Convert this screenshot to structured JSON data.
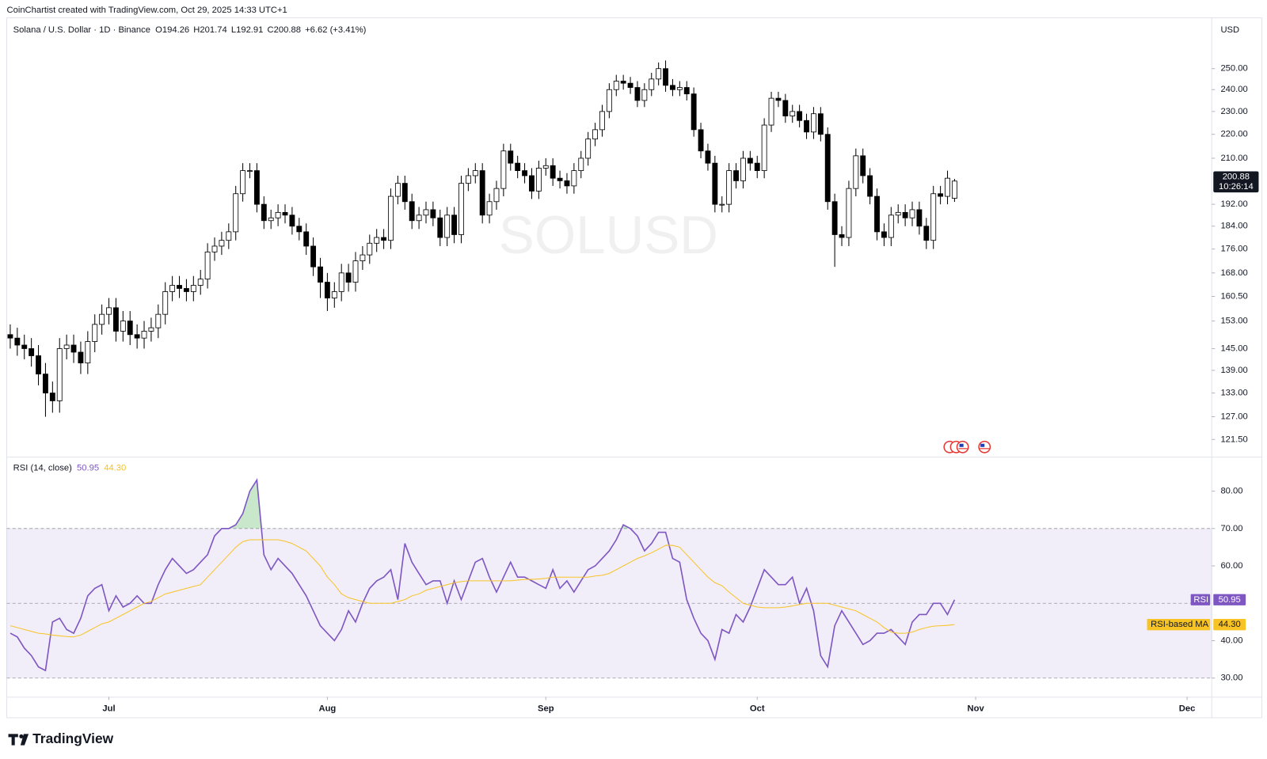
{
  "header": "CoinChartist created with TradingView.com, Oct 29, 2025 14:33 UTC+1",
  "brand": "TradingView",
  "chart_data": [
    {
      "type": "candlestick",
      "title": "Solana / U.S. Dollar · 1D · Binance",
      "ohlc_prefixes": [
        "O",
        "H",
        "L",
        "C"
      ],
      "change": "+6.62 (+3.41%)",
      "watermark": "SOLUSD",
      "currency": "USD",
      "countdown": "10:26:14",
      "up_color": "#ffffff",
      "down_color": "#000000",
      "wick_color": "#000000",
      "log_scale": true,
      "grid": false,
      "xlim": [
        -0.5,
        170.5
      ],
      "ylim": [
        117.5,
        276
      ],
      "yticks": [
        {
          "value": 121.5,
          "label": "121.50"
        },
        {
          "value": 127,
          "label": "127.00"
        },
        {
          "value": 133,
          "label": "133.00"
        },
        {
          "value": 139,
          "label": "139.00"
        },
        {
          "value": 145,
          "label": "145.00"
        },
        {
          "value": 153,
          "label": "153.00"
        },
        {
          "value": 160.5,
          "label": "160.50"
        },
        {
          "value": 168,
          "label": "168.00"
        },
        {
          "value": 176,
          "label": "176.00"
        },
        {
          "value": 184,
          "label": "184.00"
        },
        {
          "value": 192,
          "label": "192.00"
        },
        {
          "value": 210,
          "label": "210.00"
        },
        {
          "value": 220,
          "label": "220.00"
        },
        {
          "value": 230,
          "label": "230.00"
        },
        {
          "value": 240,
          "label": "240.00"
        },
        {
          "value": 250,
          "label": "250.00"
        }
      ],
      "open": [
        149,
        148,
        146,
        145,
        143,
        138,
        133,
        131,
        145,
        146,
        144,
        141,
        147,
        152,
        155,
        157,
        150,
        153,
        149,
        148,
        150,
        151,
        155,
        162,
        164,
        163,
        162,
        164,
        166,
        175,
        177,
        179,
        182,
        196,
        205,
        205,
        192,
        186,
        187,
        189,
        188,
        184,
        182,
        177,
        170,
        165,
        160,
        162,
        168,
        165,
        172,
        174,
        178,
        180,
        179,
        195,
        200,
        193,
        186,
        188,
        190,
        187,
        180,
        188,
        181,
        200,
        203,
        205,
        188,
        193,
        198,
        213,
        208,
        205,
        203,
        197,
        206,
        207,
        202,
        201,
        199,
        205,
        210,
        218,
        222,
        230,
        240,
        244,
        243,
        241,
        235,
        240,
        245,
        250,
        242,
        240,
        241,
        238,
        222,
        213,
        208,
        192,
        192,
        205,
        201,
        210,
        208,
        205,
        224,
        236,
        235,
        228,
        230,
        226,
        221,
        229,
        220,
        193,
        181,
        180,
        198,
        211,
        203,
        195,
        182,
        180,
        188,
        189,
        187,
        190,
        184,
        179,
        196,
        195,
        194.26
      ],
      "high": [
        152,
        151,
        149,
        148,
        146,
        141,
        136,
        148,
        149,
        149,
        147,
        150,
        155,
        158,
        160,
        160,
        156,
        156,
        152,
        153,
        154,
        158,
        165,
        167,
        167,
        166,
        167,
        169,
        178,
        180,
        182,
        185,
        199,
        208,
        208,
        208,
        195,
        190,
        192,
        192,
        191,
        187,
        185,
        180,
        173,
        168,
        165,
        171,
        171,
        175,
        177,
        181,
        183,
        183,
        198,
        203,
        203,
        196,
        191,
        193,
        193,
        190,
        191,
        191,
        203,
        206,
        208,
        208,
        196,
        201,
        216,
        216,
        211,
        208,
        206,
        209,
        210,
        210,
        205,
        204,
        208,
        213,
        221,
        225,
        233,
        243,
        247,
        247,
        246,
        244,
        243,
        248,
        253,
        254,
        245,
        244,
        244,
        241,
        225,
        216,
        211,
        195,
        208,
        208,
        213,
        213,
        211,
        227,
        239,
        239,
        238,
        233,
        233,
        229,
        232,
        232,
        223,
        196,
        184,
        201,
        214,
        214,
        206,
        198,
        185,
        191,
        192,
        192,
        193,
        193,
        187,
        199,
        199,
        205,
        201.74
      ],
      "low": [
        145,
        143,
        142,
        140,
        135,
        127,
        128,
        128,
        142,
        141,
        138,
        138,
        144,
        149,
        152,
        147,
        147,
        146,
        145,
        145,
        147,
        148,
        152,
        159,
        160,
        159,
        159,
        161,
        163,
        172,
        174,
        176,
        179,
        193,
        202,
        189,
        183,
        183,
        184,
        185,
        181,
        179,
        174,
        167,
        160,
        156,
        157,
        159,
        162,
        162,
        169,
        171,
        175,
        176,
        176,
        192,
        190,
        183,
        183,
        185,
        184,
        177,
        177,
        178,
        178,
        197,
        200,
        185,
        185,
        190,
        195,
        205,
        202,
        200,
        194,
        194,
        203,
        199,
        198,
        196,
        196,
        202,
        207,
        215,
        219,
        227,
        237,
        240,
        238,
        232,
        232,
        237,
        242,
        239,
        237,
        237,
        235,
        219,
        210,
        205,
        189,
        189,
        189,
        198,
        198,
        205,
        202,
        202,
        221,
        232,
        225,
        225,
        223,
        218,
        218,
        217,
        190,
        170,
        177,
        177,
        195,
        200,
        192,
        179,
        177,
        177,
        185,
        184,
        184,
        181,
        176,
        176,
        192,
        192,
        192.91
      ],
      "close": [
        148,
        146,
        145,
        143,
        138,
        133,
        131,
        145,
        146,
        144,
        141,
        147,
        152,
        155,
        157,
        150,
        153,
        149,
        148,
        150,
        151,
        155,
        162,
        164,
        163,
        162,
        164,
        166,
        175,
        177,
        179,
        182,
        196,
        205,
        205,
        192,
        186,
        187,
        189,
        188,
        184,
        182,
        177,
        170,
        165,
        160,
        162,
        168,
        165,
        172,
        174,
        178,
        180,
        179,
        195,
        200,
        193,
        186,
        188,
        190,
        187,
        180,
        188,
        181,
        200,
        203,
        205,
        188,
        193,
        198,
        213,
        208,
        205,
        203,
        197,
        206,
        207,
        202,
        201,
        199,
        205,
        210,
        218,
        222,
        230,
        240,
        244,
        243,
        241,
        235,
        240,
        245,
        250,
        242,
        240,
        241,
        238,
        222,
        213,
        208,
        192,
        192,
        205,
        201,
        210,
        208,
        205,
        224,
        236,
        235,
        228,
        230,
        226,
        221,
        229,
        220,
        193,
        181,
        180,
        198,
        211,
        203,
        195,
        182,
        180,
        188,
        189,
        187,
        190,
        184,
        179,
        196,
        195,
        202,
        200.88
      ]
    },
    {
      "type": "line",
      "title": "RSI (14, close)",
      "grid": false,
      "xlim": [
        -0.5,
        170.5
      ],
      "xticks": [
        {
          "value": 14,
          "label": "Jul"
        },
        {
          "value": 45,
          "label": "Aug"
        },
        {
          "value": 76,
          "label": "Sep"
        },
        {
          "value": 106,
          "label": "Oct"
        },
        {
          "value": 137,
          "label": "Nov"
        },
        {
          "value": 167,
          "label": "Dec"
        }
      ],
      "ylim": [
        25,
        89
      ],
      "yticks": [
        {
          "value": 30,
          "label": "30.00"
        },
        {
          "value": 40,
          "label": "40.00"
        },
        {
          "value": 60,
          "label": "60.00"
        },
        {
          "value": 70,
          "label": "70.00"
        },
        {
          "value": 80,
          "label": "80.00"
        }
      ],
      "band": [
        30,
        70
      ],
      "midline": 50,
      "band_color": "#7e57c2",
      "overbought_color": "#4caf50",
      "series": [
        {
          "name": "RSI",
          "color": "#7e57c2",
          "values": [
            42,
            41,
            38,
            36,
            33,
            32,
            45,
            46,
            43,
            42,
            46,
            52,
            54,
            55,
            48,
            52,
            49,
            50,
            52,
            50,
            50,
            55,
            59,
            62,
            60,
            58,
            59,
            61,
            63,
            68,
            70,
            70,
            71,
            74,
            80,
            83,
            63,
            59,
            62,
            60,
            58,
            55,
            52,
            48,
            44,
            42,
            40,
            43,
            48,
            45,
            50,
            54,
            56,
            57,
            59,
            51,
            66,
            61,
            58,
            55,
            56,
            56,
            50,
            56,
            51,
            56,
            61,
            62,
            57,
            53,
            57,
            61,
            57,
            57,
            56,
            55,
            54,
            59,
            54,
            56,
            53,
            56,
            59,
            60,
            62,
            64,
            67,
            71,
            70,
            68,
            64,
            66,
            69,
            69,
            62,
            61,
            51,
            46,
            42,
            40,
            35,
            43,
            42,
            47,
            45,
            49,
            54,
            59,
            57,
            55,
            55,
            57,
            50,
            54,
            48,
            36,
            33,
            44,
            48,
            45,
            42,
            39,
            40,
            42,
            42,
            43,
            41,
            39,
            45,
            47,
            47,
            50,
            50,
            47,
            50.95
          ]
        },
        {
          "name": "RSI-based MA",
          "color": "#f7c325",
          "last_value_label": "44.30",
          "values": [
            44,
            43.5,
            43,
            42.5,
            42,
            41.8,
            41.5,
            41.3,
            41.1,
            41,
            41.5,
            42.5,
            43.5,
            44.5,
            45,
            46,
            47,
            48,
            49,
            50,
            50.5,
            51.5,
            52.5,
            53,
            53.5,
            54,
            54.5,
            55,
            57,
            59,
            61,
            63,
            65,
            66.5,
            67,
            67,
            67,
            67,
            67,
            66.6,
            66,
            65,
            64,
            62,
            60,
            57,
            55,
            52.5,
            51.5,
            51,
            50.5,
            50,
            50,
            50,
            50,
            50.5,
            51,
            52,
            52.5,
            53.5,
            54,
            54.5,
            55,
            55.5,
            55.8,
            56,
            56,
            56,
            56,
            56,
            56,
            56,
            56.2,
            56.4,
            56.4,
            56.5,
            56.7,
            57,
            57,
            57,
            57,
            57,
            57,
            57.3,
            57.5,
            58,
            59,
            60,
            61,
            62,
            62.7,
            63.5,
            64.5,
            65.5,
            65.5,
            65,
            63,
            61,
            59,
            57,
            55.5,
            54.7,
            53,
            51.5,
            50,
            49.5,
            49,
            48.8,
            48.8,
            48.8,
            49,
            49.3,
            49.7,
            50,
            50,
            50,
            50,
            49.5,
            49,
            48.5,
            48,
            47,
            46,
            45,
            43.5,
            42.3,
            42,
            42,
            42.3,
            43,
            43.5,
            43.9,
            44,
            44.1,
            44.3
          ]
        }
      ]
    }
  ]
}
